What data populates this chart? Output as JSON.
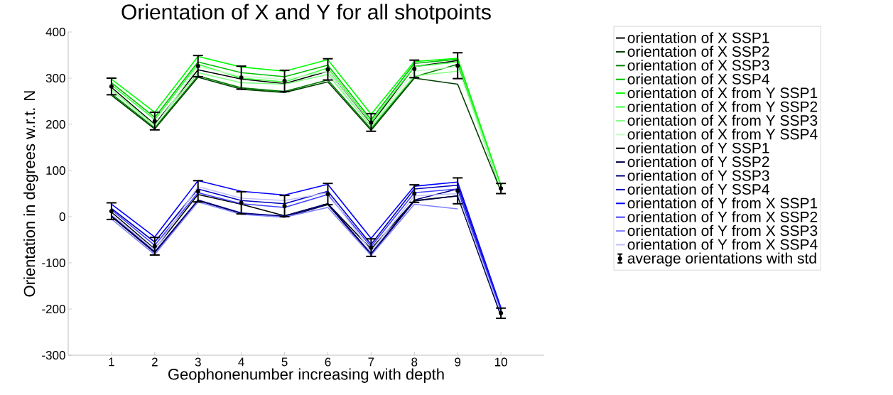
{
  "chart_data": {
    "type": "line",
    "title": "Orientation of X and Y for all shotpoints",
    "xlabel": "Geophonenumber increasing with depth",
    "ylabel": "Orientation in degrees w.r.t. N",
    "x": [
      1,
      2,
      3,
      4,
      5,
      6,
      7,
      8,
      9,
      10
    ],
    "xlim": [
      0,
      11
    ],
    "xticks": [
      1,
      2,
      3,
      4,
      5,
      6,
      7,
      8,
      9,
      10
    ],
    "ylim": [
      -300,
      400
    ],
    "yticks": [
      -300,
      -200,
      -100,
      0,
      100,
      200,
      300,
      400
    ],
    "grid": false,
    "legend": "right",
    "marker": "none",
    "line_style": "solid",
    "series": [
      {
        "name": "orientation of X SSP1",
        "color": "#000000",
        "values": [
          280,
          200,
          318,
          298,
          288,
          315,
          200,
          325,
          338,
          60
        ]
      },
      {
        "name": "orientation of X SSP2",
        "color": "#004000",
        "values": [
          263,
          190,
          302,
          276,
          269,
          292,
          187,
          300,
          287,
          55
        ]
      },
      {
        "name": "orientation of X SSP3",
        "color": "#008000",
        "values": [
          266,
          193,
          305,
          279,
          271,
          296,
          190,
          303,
          330,
          57
        ]
      },
      {
        "name": "orientation of X SSP4",
        "color": "#00c000",
        "values": [
          290,
          215,
          335,
          312,
          303,
          328,
          210,
          332,
          341,
          64
        ]
      },
      {
        "name": "orientation of X from Y SSP1",
        "color": "#00ff00",
        "values": [
          298,
          226,
          347,
          324,
          315,
          340,
          222,
          336,
          343,
          68
        ]
      },
      {
        "name": "orientation of X from Y SSP2",
        "color": "#40ff40",
        "values": [
          285,
          210,
          330,
          300,
          292,
          322,
          205,
          325,
          335,
          62
        ]
      },
      {
        "name": "orientation of X from Y SSP3",
        "color": "#80ff80",
        "values": [
          275,
          198,
          312,
          290,
          287,
          308,
          195,
          305,
          315,
          null
        ]
      },
      {
        "name": "orientation of X from Y SSP4",
        "color": "#c0ffc0",
        "values": [
          270,
          195,
          325,
          304,
          297,
          315,
          198,
          315,
          325,
          60
        ]
      },
      {
        "name": "orientation of Y SSP1",
        "color": "#000000",
        "values": [
          10,
          -70,
          48,
          27,
          2,
          28,
          -70,
          35,
          45,
          -210
        ]
      },
      {
        "name": "orientation of Y SSP2",
        "color": "#000040",
        "values": [
          0,
          -78,
          35,
          7,
          -1,
          26,
          -82,
          34,
          45,
          -215
        ]
      },
      {
        "name": "orientation of Y SSP3",
        "color": "#000080",
        "values": [
          2,
          -76,
          36,
          8,
          1,
          28,
          -80,
          36,
          60,
          -213
        ]
      },
      {
        "name": "orientation of Y SSP4",
        "color": "#0000c0",
        "values": [
          18,
          -55,
          60,
          35,
          28,
          55,
          -60,
          60,
          68,
          -203
        ]
      },
      {
        "name": "orientation of Y from X SSP1",
        "color": "#0000ff",
        "values": [
          27,
          -44,
          78,
          55,
          47,
          70,
          -47,
          66,
          75,
          -197
        ]
      },
      {
        "name": "orientation of Y from X SSP2",
        "color": "#4040ff",
        "values": [
          15,
          -62,
          52,
          28,
          20,
          48,
          -65,
          52,
          60,
          -205
        ]
      },
      {
        "name": "orientation of Y from X SSP3",
        "color": "#8080ff",
        "values": [
          -5,
          -82,
          32,
          5,
          -1,
          20,
          -84,
          27,
          17,
          null
        ]
      },
      {
        "name": "orientation of Y from X SSP4",
        "color": "#c0c0ff",
        "values": [
          5,
          -72,
          65,
          40,
          35,
          52,
          -75,
          45,
          50,
          -208
        ]
      },
      {
        "name": "average orientations with std",
        "color": "#000000",
        "type": "scatter",
        "marker": "circle",
        "x": [
          1,
          2,
          3,
          4,
          5,
          6,
          7,
          8,
          9,
          10,
          1,
          2,
          3,
          4,
          5,
          6,
          7,
          8,
          9,
          10
        ],
        "values": [
          282,
          207,
          326,
          301,
          294,
          319,
          204,
          320,
          327,
          61,
          12,
          -64,
          55,
          30,
          23,
          49,
          -67,
          50,
          56,
          -209
        ],
        "errors": [
          18,
          19,
          23,
          25,
          23,
          23,
          19,
          19,
          28,
          11,
          18,
          19,
          23,
          24,
          23,
          23,
          19,
          19,
          28,
          11
        ]
      }
    ]
  }
}
